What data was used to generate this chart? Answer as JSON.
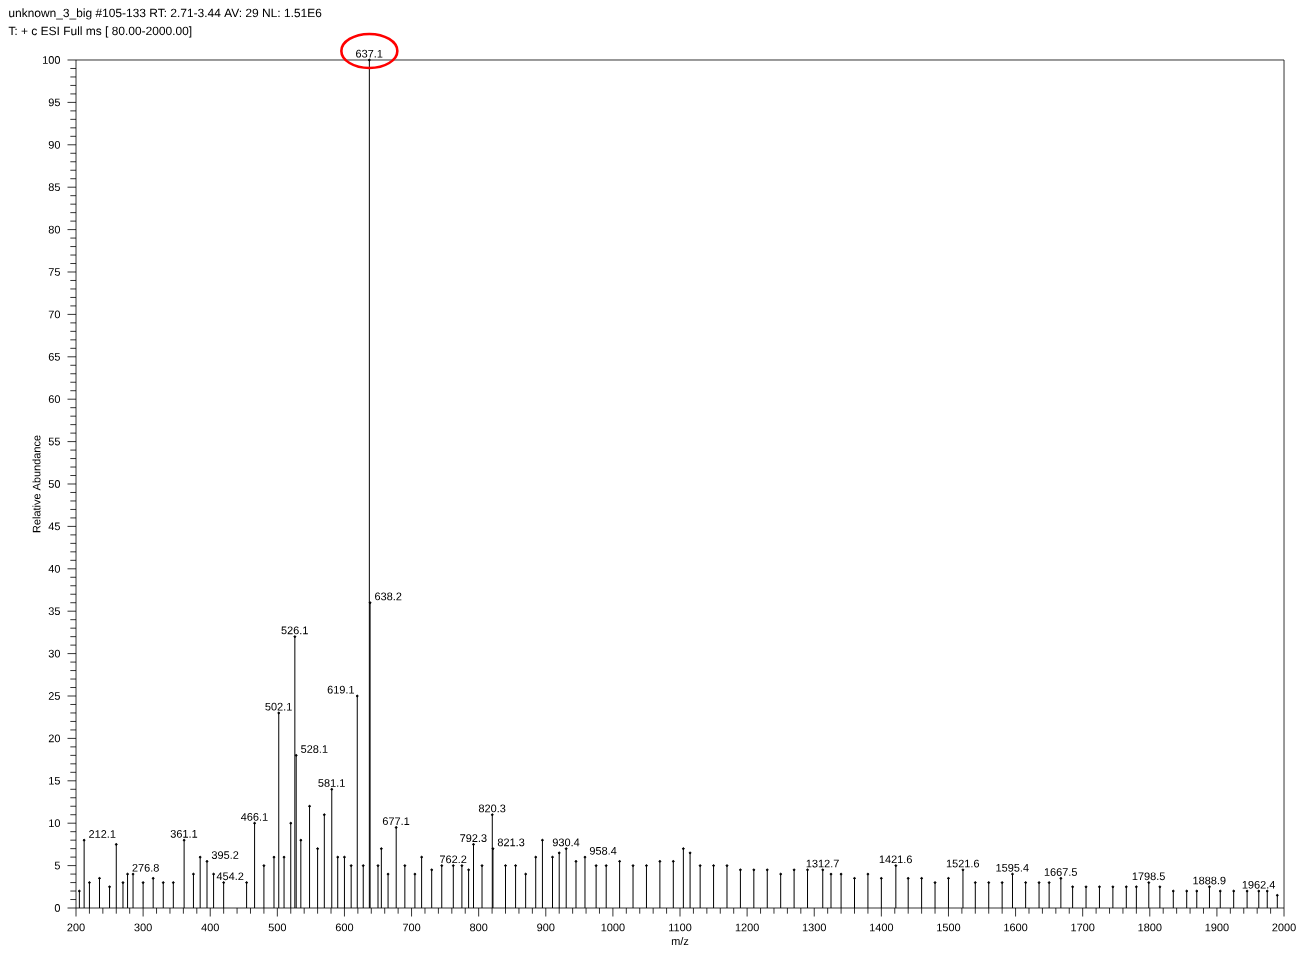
{
  "chart_data": {
    "type": "lollipop",
    "marker": "circle",
    "title": "unknown_3_big #105-133  RT: 2.71-3.44  AV: 29  NL: 1.51E6",
    "subtitle": "T: + c ESI Full ms [ 80.00-2000.00]",
    "xlabel": "m/z",
    "ylabel": "Relative Abundance",
    "xlim": [
      200,
      2000
    ],
    "ylim": [
      0,
      100
    ],
    "xticks": [
      200,
      300,
      400,
      500,
      600,
      700,
      800,
      900,
      1000,
      1100,
      1200,
      1300,
      1400,
      1500,
      1600,
      1700,
      1800,
      1900,
      2000
    ],
    "yticks": [
      0,
      5,
      10,
      15,
      20,
      25,
      30,
      35,
      40,
      45,
      50,
      55,
      60,
      65,
      70,
      75,
      80,
      85,
      90,
      95,
      100
    ],
    "annotations": [
      {
        "text": "212.1",
        "x": 212.1,
        "y": 8
      },
      {
        "text": "276.8",
        "x": 276.8,
        "y": 4
      },
      {
        "text": "361.1",
        "x": 361.1,
        "y": 8
      },
      {
        "text": "395.2",
        "x": 395.2,
        "y": 5.5
      },
      {
        "text": "454.2",
        "x": 454.2,
        "y": 3
      },
      {
        "text": "466.1",
        "x": 466.1,
        "y": 10
      },
      {
        "text": "502.1",
        "x": 502.1,
        "y": 23
      },
      {
        "text": "526.1",
        "x": 526.1,
        "y": 32
      },
      {
        "text": "528.1",
        "x": 528.1,
        "y": 18
      },
      {
        "text": "581.1",
        "x": 581.1,
        "y": 14
      },
      {
        "text": "619.1",
        "x": 619.1,
        "y": 25
      },
      {
        "text": "637.1",
        "x": 637.1,
        "y": 100
      },
      {
        "text": "638.2",
        "x": 638.2,
        "y": 36
      },
      {
        "text": "677.1",
        "x": 677.1,
        "y": 9.5
      },
      {
        "text": "762.2",
        "x": 762.2,
        "y": 5
      },
      {
        "text": "792.3",
        "x": 792.3,
        "y": 7.5
      },
      {
        "text": "820.3",
        "x": 820.3,
        "y": 11
      },
      {
        "text": "821.3",
        "x": 821.3,
        "y": 7
      },
      {
        "text": "930.4",
        "x": 930.4,
        "y": 7
      },
      {
        "text": "958.4",
        "x": 958.4,
        "y": 6
      },
      {
        "text": "1312.7",
        "x": 1312.7,
        "y": 4.5
      },
      {
        "text": "1421.6",
        "x": 1421.6,
        "y": 5
      },
      {
        "text": "1521.6",
        "x": 1521.6,
        "y": 4.5
      },
      {
        "text": "1595.4",
        "x": 1595.4,
        "y": 4
      },
      {
        "text": "1667.5",
        "x": 1667.5,
        "y": 3.5
      },
      {
        "text": "1798.5",
        "x": 1798.5,
        "y": 3
      },
      {
        "text": "1888.9",
        "x": 1888.9,
        "y": 2.5
      },
      {
        "text": "1962.4",
        "x": 1962.4,
        "y": 2
      }
    ],
    "series": [
      {
        "color": "#000000",
        "x": [
          205,
          212.1,
          220,
          235,
          250,
          260,
          270,
          276.8,
          285,
          300,
          315,
          330,
          345,
          361.1,
          375,
          385,
          395.2,
          405,
          420,
          454.2,
          466.1,
          480,
          495,
          502.1,
          510,
          520,
          526.1,
          528.1,
          535,
          548,
          560,
          570,
          581.1,
          590,
          600,
          610,
          619.1,
          628,
          637.1,
          638.2,
          650,
          655,
          665,
          677.1,
          690,
          705,
          715,
          730,
          745,
          762.2,
          775,
          785,
          792.3,
          805,
          820.3,
          821.3,
          840,
          855,
          870,
          885,
          895,
          910,
          920,
          930.4,
          945,
          958.4,
          975,
          990,
          1010,
          1030,
          1050,
          1070,
          1090,
          1105,
          1115,
          1130,
          1150,
          1170,
          1190,
          1210,
          1230,
          1250,
          1270,
          1290,
          1312.7,
          1325,
          1340,
          1360,
          1380,
          1400,
          1421.6,
          1440,
          1460,
          1480,
          1500,
          1521.6,
          1540,
          1560,
          1580,
          1595.4,
          1615,
          1635,
          1650,
          1667.5,
          1685,
          1705,
          1725,
          1745,
          1765,
          1780,
          1798.5,
          1815,
          1835,
          1855,
          1870,
          1888.9,
          1905,
          1925,
          1945,
          1962.4,
          1975,
          1990
        ],
        "values": [
          2,
          8,
          3,
          3.5,
          2.5,
          7.5,
          3,
          4,
          4,
          3,
          3.5,
          3,
          3,
          8,
          4,
          6,
          5.5,
          4,
          3,
          3,
          10,
          5,
          6,
          23,
          6,
          10,
          32,
          18,
          8,
          12,
          7,
          11,
          14,
          6,
          6,
          5,
          25,
          5,
          100,
          36,
          5,
          7,
          4,
          9.5,
          5,
          4,
          6,
          4.5,
          5,
          5,
          5,
          4.5,
          7.5,
          5,
          11,
          7,
          5,
          5,
          4,
          6,
          8,
          6,
          6.5,
          7,
          5.5,
          6,
          5,
          5,
          5.5,
          5,
          5,
          5.5,
          5.5,
          7,
          6.5,
          5,
          5,
          5,
          4.5,
          4.5,
          4.5,
          4,
          4.5,
          4.5,
          4.5,
          4,
          4,
          3.5,
          4,
          3.5,
          5,
          3.5,
          3.5,
          3,
          3.5,
          4.5,
          3,
          3,
          3,
          4,
          3,
          3,
          3,
          3.5,
          2.5,
          2.5,
          2.5,
          2.5,
          2.5,
          2.5,
          3,
          2.5,
          2,
          2,
          2,
          2.5,
          2,
          2,
          2,
          2,
          2,
          1.5
        ]
      }
    ]
  }
}
